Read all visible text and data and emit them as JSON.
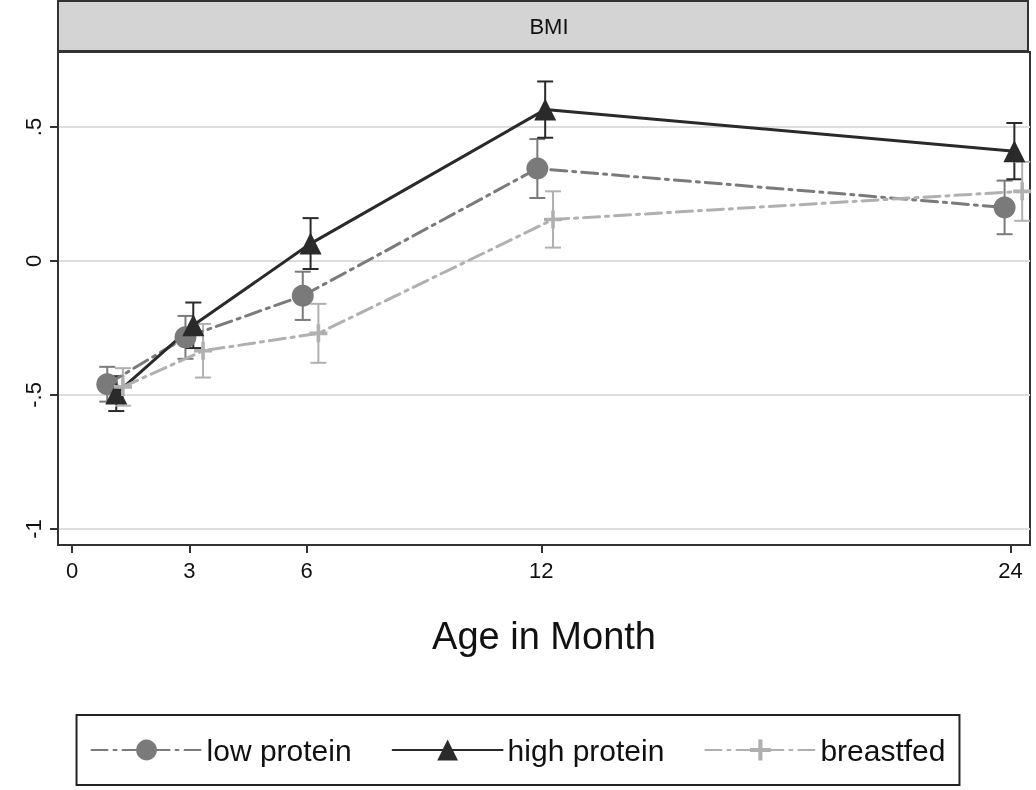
{
  "chart_data": {
    "type": "line",
    "title": "BMI",
    "xlabel": "Age in Month",
    "xlim": [
      -0.36,
      24.5
    ],
    "xticks": [
      0,
      3,
      6,
      12,
      24
    ],
    "ylim": [
      -1.06,
      0.78
    ],
    "yticks": [
      {
        "value": 0.5,
        "label": ".5"
      },
      0,
      {
        "value": -0.5,
        "label": "-.5"
      },
      -1
    ],
    "grid": "y",
    "legend": "bottom",
    "series": [
      {
        "name": "low protein",
        "color": "#7a7a7a",
        "marker": "circle",
        "line_style": "dashed",
        "x": [
          0.9,
          2.9,
          5.9,
          11.9,
          23.85
        ],
        "values": [
          -0.46,
          -0.285,
          -0.13,
          0.345,
          0.2
        ],
        "errors": [
          0.065,
          0.08,
          0.09,
          0.11,
          0.1
        ]
      },
      {
        "name": "high protein",
        "color": "#2a2a2a",
        "marker": "triangle",
        "line_style": "solid",
        "x": [
          1.13,
          3.1,
          6.1,
          12.1,
          24.1
        ],
        "values": [
          -0.495,
          -0.24,
          0.065,
          0.565,
          0.41
        ],
        "errors": [
          0.065,
          0.085,
          0.095,
          0.105,
          0.105
        ]
      },
      {
        "name": "breastfed",
        "color": "#b0b0b0",
        "marker": "cross",
        "line_style": "dashed",
        "x": [
          1.3,
          3.35,
          6.3,
          12.3,
          24.3
        ],
        "values": [
          -0.47,
          -0.335,
          -0.27,
          0.155,
          0.26
        ],
        "errors": [
          0.07,
          0.1,
          0.11,
          0.105,
          0.11
        ]
      }
    ]
  }
}
